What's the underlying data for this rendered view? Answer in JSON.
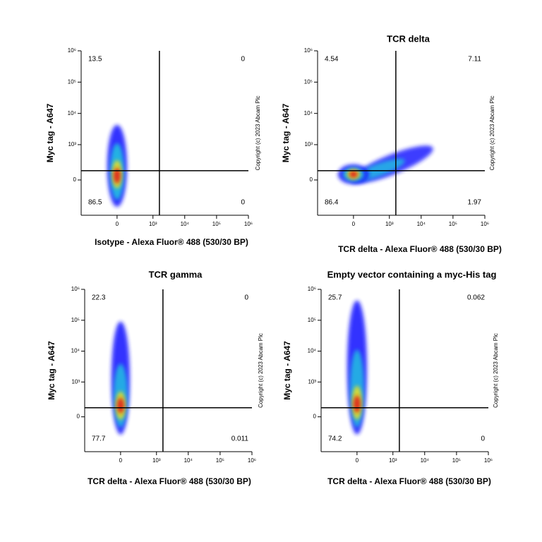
{
  "chart_data": [
    {
      "type": "scatter",
      "x_label": "Isotype - Alexa Fluor® 488 (530/30 BP)",
      "y_label": "Myc tag - A647",
      "watermark": "Copyright (c) 2023 Abcam Plc",
      "xlim": [
        -1000,
        1000000
      ],
      "ylim": [
        -1000,
        1000000
      ],
      "xticks": [
        0,
        {
          "value": 1000,
          "label": "10³"
        },
        {
          "value": 10000,
          "label": "10⁴"
        },
        {
          "value": 100000,
          "label": "10⁵"
        },
        {
          "value": 1000000,
          "label": "10⁶"
        }
      ],
      "yticks": [
        0,
        {
          "value": 1000,
          "label": "10³"
        },
        {
          "value": 10000,
          "label": "10⁴"
        },
        {
          "value": 100000,
          "label": "10⁵"
        },
        {
          "value": 1000000,
          "label": "10⁶"
        }
      ],
      "quadrant_gate": {
        "x": 1600,
        "y": 110
      },
      "quadrant_values": {
        "upper_left": 13.5,
        "upper_right": 0,
        "lower_left": 86.5,
        "lower_right": 0
      }
    },
    {
      "type": "scatter",
      "title": "TCR delta",
      "x_label": "TCR delta - Alexa Fluor® 488 (530/30 BP)",
      "y_label": "Myc tag - A647",
      "watermark": "Copyright (c) 2023 Abcam Plc",
      "xlim": [
        -1000,
        1000000
      ],
      "ylim": [
        -1000,
        1000000
      ],
      "xticks": [
        0,
        {
          "value": 1000,
          "label": "10³"
        },
        {
          "value": 10000,
          "label": "10⁴"
        },
        {
          "value": 100000,
          "label": "10⁵"
        },
        {
          "value": 1000000,
          "label": "10⁶"
        }
      ],
      "yticks": [
        0,
        {
          "value": 1000,
          "label": "10³"
        },
        {
          "value": 10000,
          "label": "10⁴"
        },
        {
          "value": 100000,
          "label": "10⁵"
        },
        {
          "value": 1000000,
          "label": "10⁶"
        }
      ],
      "quadrant_gate": {
        "x": 1600,
        "y": 110
      },
      "quadrant_values": {
        "upper_left": 4.54,
        "upper_right": 7.11,
        "lower_left": 86.4,
        "lower_right": 1.97
      }
    },
    {
      "type": "scatter",
      "title": "TCR gamma",
      "x_label": "TCR delta - Alexa Fluor® 488 (530/30 BP)",
      "y_label": "Myc tag - A647",
      "watermark": "Copyright (c) 2023 Abcam Plc",
      "xlim": [
        -1000,
        1000000
      ],
      "ylim": [
        -1000,
        1000000
      ],
      "xticks": [
        0,
        {
          "value": 1000,
          "label": "10³"
        },
        {
          "value": 10000,
          "label": "10⁴"
        },
        {
          "value": 100000,
          "label": "10⁵"
        },
        {
          "value": 1000000,
          "label": "10⁶"
        }
      ],
      "yticks": [
        0,
        {
          "value": 1000,
          "label": "10³"
        },
        {
          "value": 10000,
          "label": "10⁴"
        },
        {
          "value": 100000,
          "label": "10⁵"
        },
        {
          "value": 1000000,
          "label": "10⁶"
        }
      ],
      "quadrant_gate": {
        "x": 1600,
        "y": 110
      },
      "quadrant_values": {
        "upper_left": 22.3,
        "upper_right": 0,
        "lower_left": 77.7,
        "lower_right": 0.011
      }
    },
    {
      "type": "scatter",
      "title": "Empty vector containing a myc-His tag",
      "x_label": "TCR delta - Alexa Fluor® 488 (530/30 BP)",
      "y_label": "Myc tag - A647",
      "watermark": "Copyright (c) 2023 Abcam Plc",
      "xlim": [
        -1000,
        1000000
      ],
      "ylim": [
        -1000,
        1000000
      ],
      "xticks": [
        0,
        {
          "value": 1000,
          "label": "10³"
        },
        {
          "value": 10000,
          "label": "10⁴"
        },
        {
          "value": 100000,
          "label": "10⁵"
        },
        {
          "value": 1000000,
          "label": "10⁶"
        }
      ],
      "yticks": [
        0,
        {
          "value": 1000,
          "label": "10³"
        },
        {
          "value": 10000,
          "label": "10⁴"
        },
        {
          "value": 100000,
          "label": "10⁵"
        },
        {
          "value": 1000000,
          "label": "10⁶"
        }
      ],
      "quadrant_gate": {
        "x": 1600,
        "y": 110
      },
      "quadrant_values": {
        "upper_left": 25.7,
        "upper_right": 0.062,
        "lower_left": 74.2,
        "lower_right": 0
      }
    }
  ]
}
